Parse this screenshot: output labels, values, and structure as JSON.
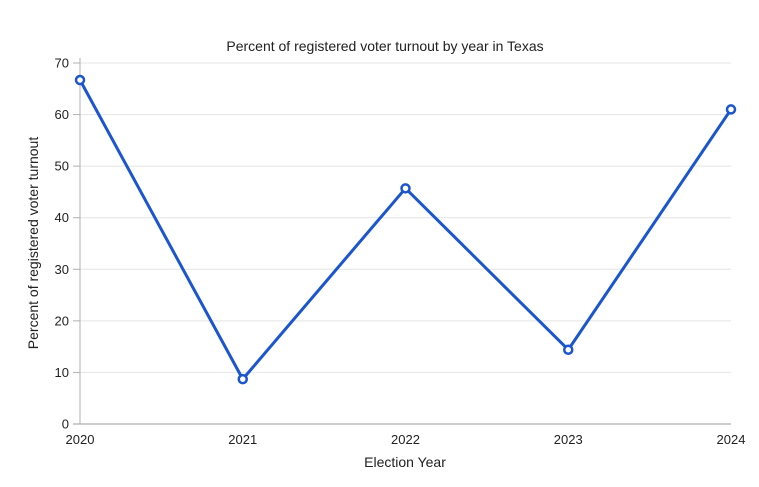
{
  "chart_data": {
    "type": "line",
    "title": "Percent of registered voter turnout by year in Texas",
    "xlabel": "Election Year",
    "ylabel": "Percent of registered voter turnout",
    "x": [
      2020,
      2021,
      2022,
      2023,
      2024
    ],
    "xtick_labels": [
      "2020",
      "2021",
      "2022",
      "2023",
      "2024"
    ],
    "series": [
      {
        "name": "Percent of registered voter turnout",
        "values": [
          66.7,
          8.7,
          45.7,
          14.4,
          61.0
        ]
      }
    ],
    "ylim": [
      0,
      70
    ],
    "ytick_step": 10,
    "grid": "horizontal-only",
    "legend": "none",
    "marker": "open-circle",
    "colors": {
      "line": "#1b56ce",
      "marker_fill": "#ffffff",
      "gridline": "#e4e4e4",
      "axis_line": "#b0b0b0",
      "x_axis_line": "#9e9e9e",
      "text": "#212121"
    }
  }
}
